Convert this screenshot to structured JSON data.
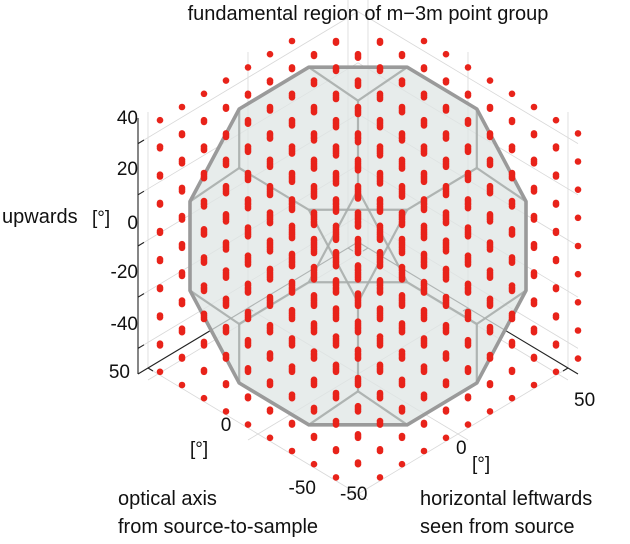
{
  "chart_data": {
    "type": "scatter",
    "projection": "3d",
    "title": "fundamental region of m−3m point group",
    "axes": {
      "x": {
        "label_lines": [
          "optical axis",
          "from source-to-sample"
        ],
        "unit": "[°]",
        "range": [
          -55,
          55
        ],
        "ticks": [
          "-50",
          "0",
          "50"
        ]
      },
      "y": {
        "label_lines": [
          "horizontal leftwards",
          "seen from source"
        ],
        "unit": "[°]",
        "range": [
          -55,
          55
        ],
        "ticks": [
          "-50",
          "0",
          "50"
        ]
      },
      "z": {
        "label": "upwards",
        "unit": "[°]",
        "range": [
          -50,
          50
        ],
        "ticks": [
          "-40",
          "-20",
          "0",
          "20",
          "40"
        ]
      }
    },
    "grid": true,
    "points": {
      "color": "#e8231a",
      "grid_spacing_deg": 11,
      "extent": [
        -55,
        55
      ]
    },
    "region": {
      "shape": "truncated-cube",
      "fill": "#dfe6e4",
      "edge_color": "#9a9a9a",
      "inner_edge_color": "#a8aeac"
    }
  }
}
